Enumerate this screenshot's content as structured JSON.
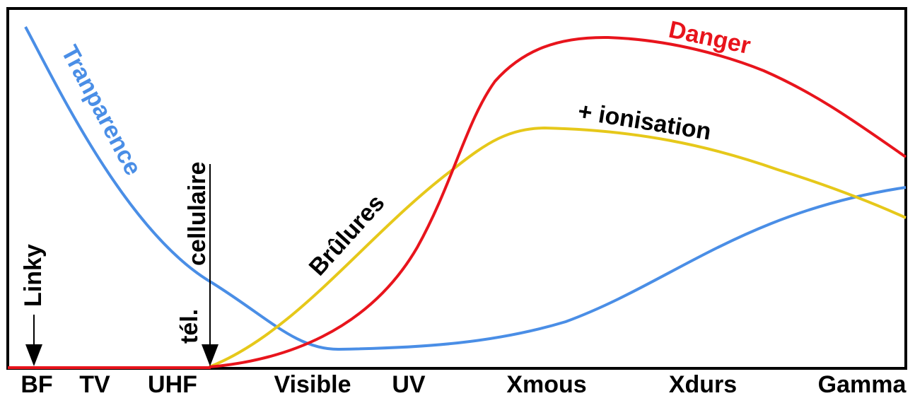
{
  "spectrum": {
    "bands": [
      "BF",
      "TV",
      "UHF",
      "Visible",
      "UV",
      "Xmous",
      "Xdurs",
      "Gamma"
    ]
  },
  "curves": {
    "transparency": {
      "label": "Tranparence",
      "color": "#4a8ee6"
    },
    "burns": {
      "label": "Brûlures",
      "color": "#e6c81a"
    },
    "ionisation": {
      "label": "+ ionisation"
    },
    "danger": {
      "label": "Danger",
      "color": "#e8141c"
    }
  },
  "markers": {
    "linky": {
      "label": "Linky"
    },
    "cellphone": {
      "line1": "tél.",
      "line2": "cellulaire"
    }
  }
}
